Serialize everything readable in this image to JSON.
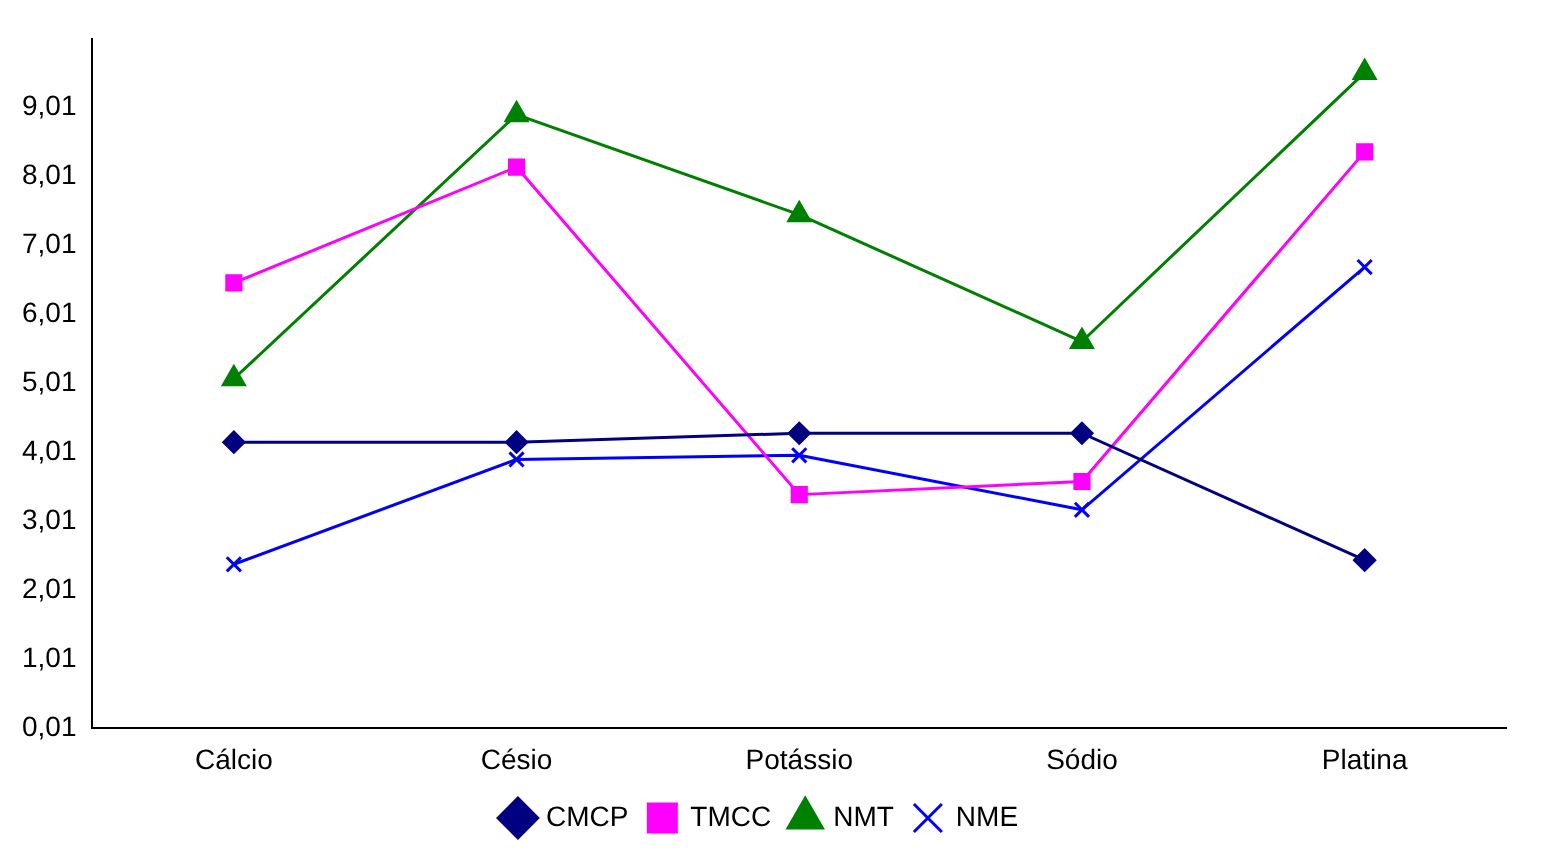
{
  "chart_data": {
    "type": "line",
    "categories": [
      "Cálcio",
      "Césio",
      "Potássio",
      "Sódio",
      "Platina"
    ],
    "series": [
      {
        "name": "CMCP",
        "color": "#000080",
        "marker": "diamond",
        "values": [
          4.16,
          4.16,
          4.29,
          4.29,
          2.45
        ]
      },
      {
        "name": "TMCC",
        "color": "#ff00ff",
        "marker": "square",
        "values": [
          6.47,
          8.15,
          3.4,
          3.59,
          8.37
        ]
      },
      {
        "name": "NMT",
        "color": "#008000",
        "marker": "triangle",
        "values": [
          5.08,
          8.91,
          7.46,
          5.62,
          9.52
        ]
      },
      {
        "name": "NME",
        "color": "#0000ff",
        "marker": "cross",
        "values": [
          2.39,
          3.91,
          3.97,
          3.18,
          6.7
        ]
      }
    ],
    "ylim": [
      0.01,
      10.01
    ],
    "yticks": [
      {
        "value": 0.01,
        "label": "0,01"
      },
      {
        "value": 1.01,
        "label": "1,01"
      },
      {
        "value": 2.01,
        "label": "2,01"
      },
      {
        "value": 3.01,
        "label": "3,01"
      },
      {
        "value": 4.01,
        "label": "4,01"
      },
      {
        "value": 5.01,
        "label": "5,01"
      },
      {
        "value": 6.01,
        "label": "6,01"
      },
      {
        "value": 7.01,
        "label": "7,01"
      },
      {
        "value": 8.01,
        "label": "8,01"
      },
      {
        "value": 9.01,
        "label": "9,01"
      }
    ],
    "grid": false,
    "legend": "bottom",
    "line_style": "solid"
  }
}
